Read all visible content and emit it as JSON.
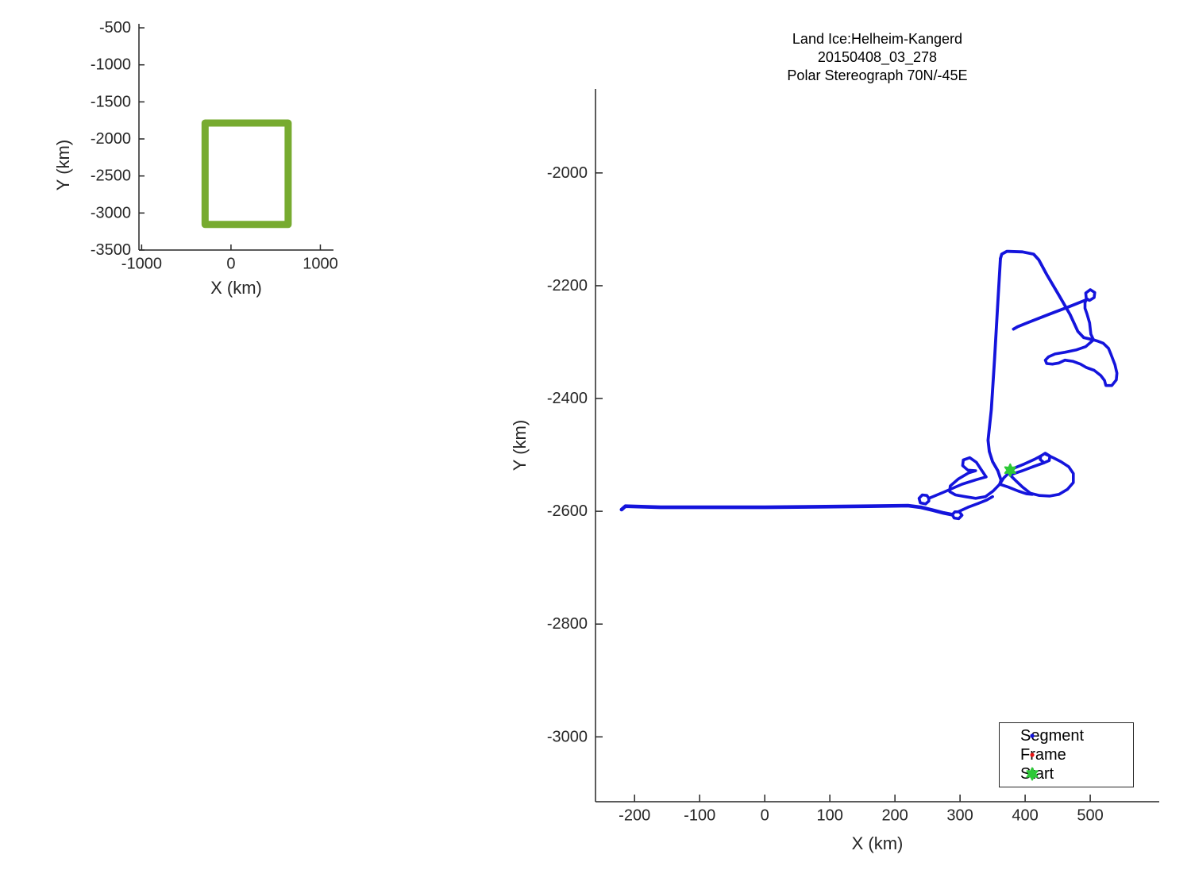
{
  "figure": {
    "background": "#ffffff",
    "axis_color": "#262626",
    "text_color": "#262626"
  },
  "chart_data": [
    {
      "id": "overview",
      "type": "line",
      "title": "",
      "xlabel": "X (km)",
      "ylabel": "Y (km)",
      "xlim": [
        -1030,
        1147
      ],
      "ylim": [
        -3500,
        -446
      ],
      "grid": false,
      "xticks": {
        "values": [
          -1000,
          0,
          1000
        ],
        "labels": [
          "-1000",
          "0",
          "1000"
        ]
      },
      "yticks": {
        "values": [
          -500,
          -1000,
          -1500,
          -2000,
          -2500,
          -3000,
          -3500
        ],
        "labels": [
          "-500",
          "-1000",
          "-1500",
          "-2000",
          "-2500",
          "-3000",
          "-3500"
        ]
      },
      "series": [
        {
          "name": "coverage-box",
          "kind": "polyline",
          "color": "#77ab30",
          "line_width": 9,
          "points": [
            [
              -290,
              -1785
            ],
            [
              640,
              -1785
            ],
            [
              640,
              -3155
            ],
            [
              -290,
              -3155
            ],
            [
              -290,
              -1785
            ]
          ]
        }
      ]
    },
    {
      "id": "main",
      "type": "line",
      "title_lines": [
        "Land Ice:Helheim-Kangerd",
        "20150408_03_278",
        "Polar Stereograph 70N/-45E"
      ],
      "xlabel": "X (km)",
      "ylabel": "Y (km)",
      "xlim": [
        -260,
        606
      ],
      "ylim": [
        -3115,
        -1851
      ],
      "grid": false,
      "xticks": {
        "values": [
          -200,
          -100,
          0,
          100,
          200,
          300,
          400,
          500
        ],
        "labels": [
          "-200",
          "-100",
          "0",
          "100",
          "200",
          "300",
          "400",
          "500"
        ]
      },
      "yticks": {
        "values": [
          -2000,
          -2200,
          -2400,
          -2600,
          -2800,
          -3000
        ],
        "labels": [
          "-2000",
          "-2200",
          "-2400",
          "-2600",
          "-2800",
          "-3000"
        ]
      },
      "track_color": "#1414dc",
      "frame_color": "#e81414",
      "start_color": "#2dc937",
      "start_point": {
        "x": 377,
        "y": -2527
      },
      "legend_entries": [
        {
          "label": "Segment",
          "marker": "dot",
          "color": "#1414dc"
        },
        {
          "label": "Frame",
          "marker": "dot",
          "color": "#e81414"
        },
        {
          "label": "Start",
          "marker": "hexagram",
          "color": "#2dc937"
        }
      ],
      "track_segments": [
        {
          "name": "approach-line",
          "line_width": 4.6,
          "points": [
            [
              -220,
              -2597
            ],
            [
              -214,
              -2591
            ],
            [
              -160,
              -2593
            ],
            [
              -80,
              -2593
            ],
            [
              0,
              -2593
            ],
            [
              80,
              -2592
            ],
            [
              160,
              -2591
            ],
            [
              220,
              -2590
            ],
            [
              240,
              -2593
            ],
            [
              258,
              -2598
            ],
            [
              275,
              -2603
            ],
            [
              288,
              -2606
            ]
          ]
        },
        {
          "name": "loop-a",
          "line_width": 3.6,
          "points": [
            [
              288,
              -2606
            ],
            [
              291,
              -2612
            ],
            [
              298,
              -2613
            ],
            [
              303,
              -2607
            ],
            [
              299,
              -2601
            ],
            [
              292,
              -2601
            ],
            [
              288,
              -2606
            ]
          ]
        },
        {
          "name": "return-a",
          "line_width": 3.6,
          "points": [
            [
              297,
              -2601
            ],
            [
              312,
              -2593
            ],
            [
              328,
              -2586
            ],
            [
              341,
              -2580
            ],
            [
              350,
              -2574
            ]
          ]
        },
        {
          "name": "loop-b",
          "line_width": 3.6,
          "points": [
            [
              252,
              -2577
            ],
            [
              249,
              -2572
            ],
            [
              242,
              -2571
            ],
            [
              237,
              -2577
            ],
            [
              239,
              -2585
            ],
            [
              247,
              -2587
            ],
            [
              252,
              -2582
            ],
            [
              252,
              -2577
            ]
          ]
        },
        {
          "name": "spur-b",
          "line_width": 3.6,
          "points": [
            [
              252,
              -2577
            ],
            [
              275,
              -2566
            ],
            [
              303,
              -2552
            ],
            [
              325,
              -2544
            ],
            [
              340,
              -2539
            ]
          ]
        },
        {
          "name": "cluster-left-lobe",
          "line_width": 3.6,
          "points": [
            [
              340,
              -2539
            ],
            [
              333,
              -2527
            ],
            [
              325,
              -2513
            ],
            [
              315,
              -2505
            ],
            [
              305,
              -2509
            ],
            [
              304,
              -2519
            ],
            [
              312,
              -2527
            ],
            [
              324,
              -2528
            ],
            [
              313,
              -2532
            ],
            [
              297,
              -2543
            ],
            [
              285,
              -2555
            ],
            [
              284,
              -2565
            ],
            [
              293,
              -2571
            ],
            [
              308,
              -2574
            ],
            [
              324,
              -2577
            ],
            [
              339,
              -2574
            ],
            [
              351,
              -2564
            ],
            [
              361,
              -2552
            ]
          ]
        },
        {
          "name": "vertical-leg",
          "line_width": 3.8,
          "points": [
            [
              361,
              -2552
            ],
            [
              363,
              -2545
            ],
            [
              358,
              -2528
            ],
            [
              350,
              -2512
            ],
            [
              345,
              -2494
            ],
            [
              343,
              -2474
            ],
            [
              348,
              -2420
            ],
            [
              353,
              -2330
            ],
            [
              358,
              -2230
            ],
            [
              362,
              -2152
            ]
          ]
        },
        {
          "name": "top-corner-diagonal",
          "line_width": 3.8,
          "points": [
            [
              362,
              -2152
            ],
            [
              364,
              -2144
            ],
            [
              372,
              -2139
            ],
            [
              396,
              -2140
            ],
            [
              413,
              -2144
            ],
            [
              421,
              -2154
            ],
            [
              433,
              -2180
            ],
            [
              451,
              -2215
            ],
            [
              469,
              -2251
            ],
            [
              481,
              -2281
            ],
            [
              490,
              -2292
            ],
            [
              505,
              -2296
            ]
          ]
        },
        {
          "name": "pretzel-loop",
          "line_width": 3.6,
          "points": [
            [
              505,
              -2296
            ],
            [
              493,
              -2308
            ],
            [
              478,
              -2314
            ],
            [
              461,
              -2318
            ],
            [
              446,
              -2321
            ],
            [
              436,
              -2326
            ],
            [
              431,
              -2332
            ],
            [
              433,
              -2338
            ],
            [
              442,
              -2339
            ],
            [
              452,
              -2337
            ],
            [
              461,
              -2332
            ],
            [
              473,
              -2334
            ],
            [
              485,
              -2339
            ],
            [
              494,
              -2345
            ],
            [
              506,
              -2350
            ],
            [
              516,
              -2359
            ],
            [
              522,
              -2368
            ],
            [
              524,
              -2377
            ],
            [
              533,
              -2377
            ],
            [
              540,
              -2367
            ],
            [
              541,
              -2355
            ],
            [
              538,
              -2340
            ],
            [
              532,
              -2322
            ],
            [
              528,
              -2311
            ],
            [
              520,
              -2302
            ],
            [
              511,
              -2298
            ],
            [
              505,
              -2296
            ]
          ]
        },
        {
          "name": "neck-up",
          "line_width": 3.6,
          "points": [
            [
              505,
              -2296
            ],
            [
              501,
              -2286
            ],
            [
              499,
              -2266
            ],
            [
              495,
              -2250
            ],
            [
              492,
              -2240
            ],
            [
              492,
              -2230
            ],
            [
              494,
              -2224
            ]
          ]
        },
        {
          "name": "loop-c",
          "line_width": 3.6,
          "points": [
            [
              494,
              -2224
            ],
            [
              493,
              -2213
            ],
            [
              500,
              -2207
            ],
            [
              507,
              -2212
            ],
            [
              506,
              -2221
            ],
            [
              499,
              -2226
            ],
            [
              494,
              -2224
            ]
          ]
        },
        {
          "name": "long-diagonal",
          "line_width": 3.8,
          "points": [
            [
              496,
              -2224
            ],
            [
              468,
              -2237
            ],
            [
              436,
              -2251
            ],
            [
              405,
              -2265
            ],
            [
              388,
              -2273
            ],
            [
              382,
              -2277
            ]
          ]
        },
        {
          "name": "marker-out",
          "line_width": 3.6,
          "points": [
            [
              361,
              -2552
            ],
            [
              367,
              -2541
            ],
            [
              375,
              -2532
            ],
            [
              384,
              -2523
            ],
            [
              399,
              -2516
            ],
            [
              414,
              -2508
            ],
            [
              424,
              -2502
            ]
          ]
        },
        {
          "name": "loop-d",
          "line_width": 3.6,
          "points": [
            [
              424,
              -2502
            ],
            [
              431,
              -2497
            ],
            [
              438,
              -2502
            ],
            [
              437,
              -2510
            ],
            [
              429,
              -2514
            ],
            [
              423,
              -2508
            ],
            [
              424,
              -2502
            ]
          ]
        },
        {
          "name": "marker-back",
          "line_width": 3.6,
          "points": [
            [
              429,
              -2514
            ],
            [
              412,
              -2521
            ],
            [
              396,
              -2528
            ],
            [
              383,
              -2533
            ],
            [
              377,
              -2536
            ]
          ]
        },
        {
          "name": "right-lobe",
          "line_width": 3.6,
          "points": [
            [
              377,
              -2536
            ],
            [
              386,
              -2546
            ],
            [
              396,
              -2557
            ],
            [
              408,
              -2568
            ],
            [
              422,
              -2572
            ],
            [
              438,
              -2573
            ],
            [
              452,
              -2570
            ],
            [
              465,
              -2561
            ],
            [
              474,
              -2549
            ],
            [
              474,
              -2533
            ],
            [
              467,
              -2521
            ],
            [
              455,
              -2512
            ],
            [
              443,
              -2505
            ],
            [
              432,
              -2499
            ]
          ]
        },
        {
          "name": "bottom-strand",
          "line_width": 3.6,
          "points": [
            [
              361,
              -2552
            ],
            [
              374,
              -2557
            ],
            [
              389,
              -2564
            ],
            [
              402,
              -2569
            ],
            [
              411,
              -2570
            ]
          ]
        }
      ]
    }
  ]
}
